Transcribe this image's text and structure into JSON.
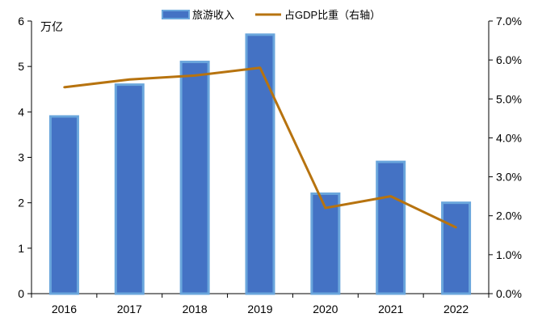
{
  "chart_data": {
    "type": "bar+line",
    "categories": [
      "2016",
      "2017",
      "2018",
      "2019",
      "2020",
      "2021",
      "2022"
    ],
    "series": [
      {
        "name": "旅游收入",
        "type": "bar",
        "axis": "left",
        "values": [
          3.9,
          4.6,
          5.1,
          5.7,
          2.2,
          2.9,
          2.0
        ]
      },
      {
        "name": "占GDP比重（右轴）",
        "type": "line",
        "axis": "right",
        "values": [
          5.3,
          5.5,
          5.6,
          5.8,
          2.2,
          2.5,
          1.7
        ]
      }
    ],
    "left_axis": {
      "unit_label": "万亿",
      "ylim": [
        0,
        6
      ],
      "ticks": [
        "0",
        "1",
        "2",
        "3",
        "4",
        "5",
        "6"
      ]
    },
    "right_axis": {
      "ylim": [
        0,
        7
      ],
      "ticks": [
        "0.0%",
        "1.0%",
        "2.0%",
        "3.0%",
        "4.0%",
        "5.0%",
        "6.0%",
        "7.0%"
      ]
    },
    "legend_position": "top-center",
    "colors": {
      "bar_fill": "#4472c4",
      "bar_stroke": "#6aa6dc",
      "line": "#b7730f",
      "axis": "#000000"
    }
  }
}
